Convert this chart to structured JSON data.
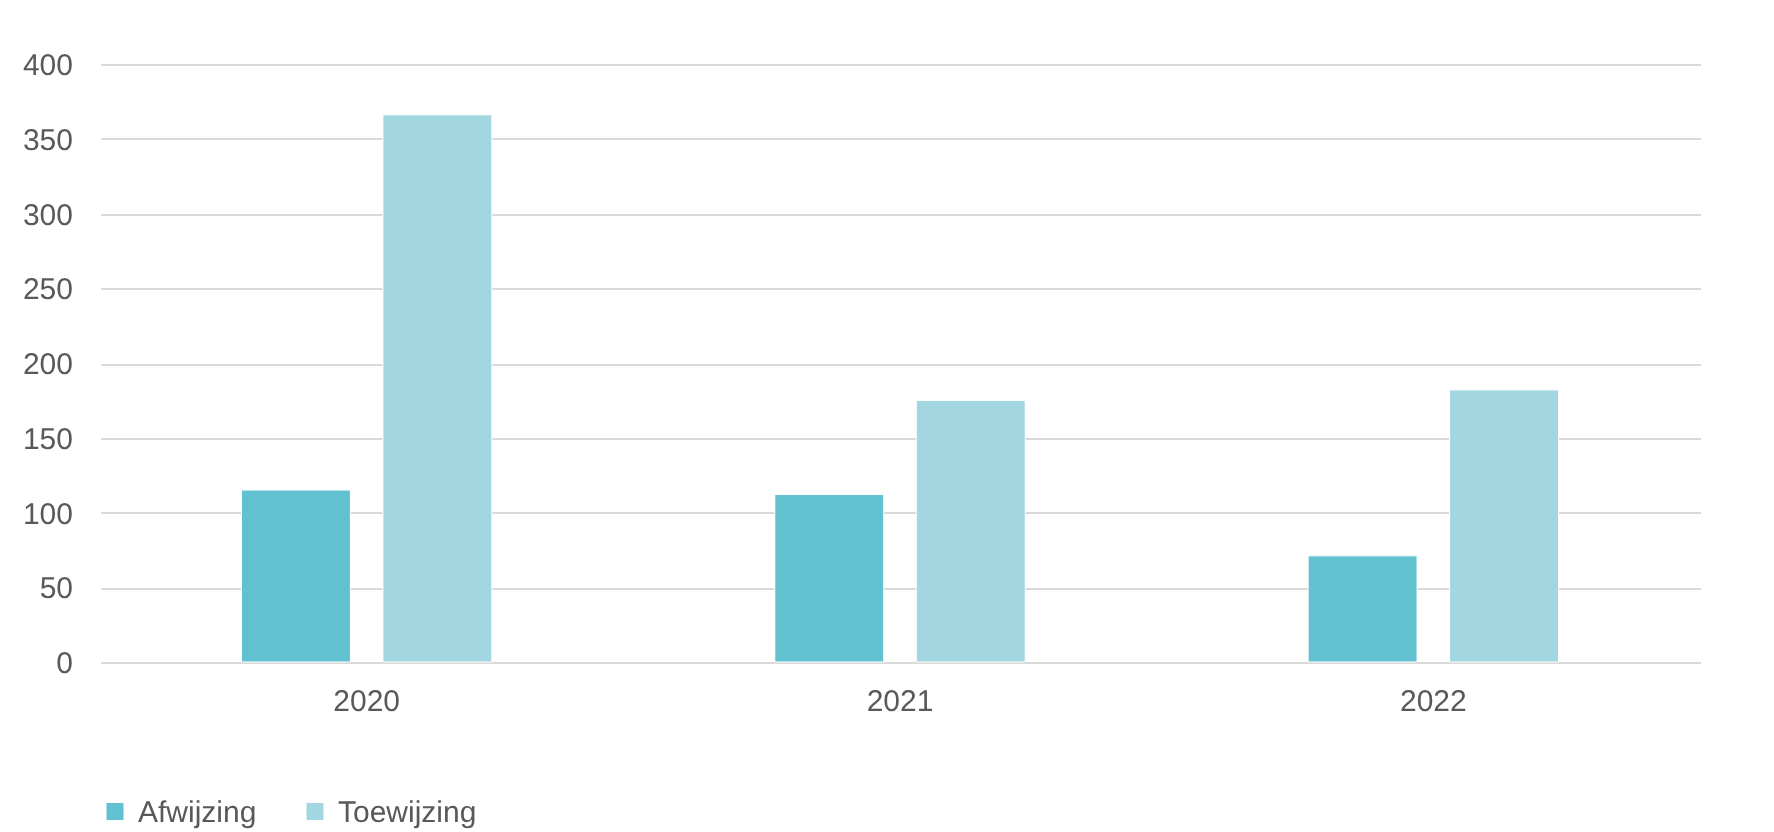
{
  "chart_data": {
    "type": "bar",
    "categories": [
      "2020",
      "2021",
      "2022"
    ],
    "series": [
      {
        "name": "Afwijzing",
        "color": "#62c1d0",
        "values": [
          115,
          112,
          71
        ]
      },
      {
        "name": "Toewijzing",
        "color": "#a2d6e0",
        "values": [
          366,
          175,
          182
        ]
      }
    ],
    "ylim": [
      0,
      400
    ],
    "yticks": [
      0,
      50,
      100,
      150,
      200,
      250,
      300,
      350,
      400
    ],
    "grid": "y",
    "legend": "bottom"
  }
}
